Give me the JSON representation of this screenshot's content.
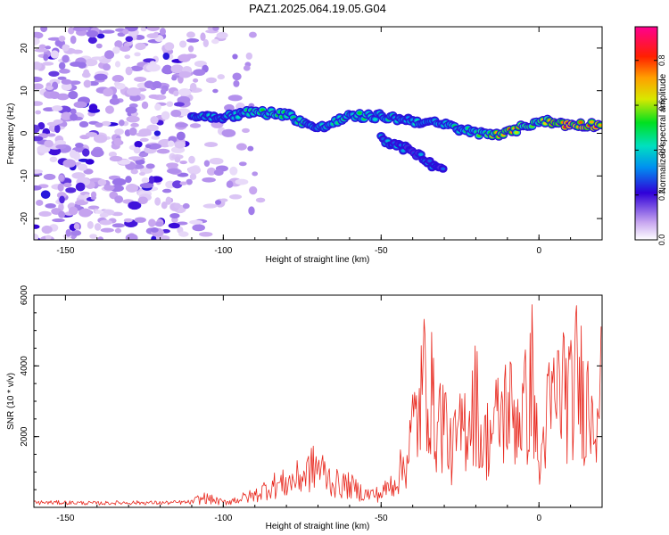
{
  "chart_data": [
    {
      "type": "heatmap",
      "title": "PAZ1.2025.064.19.05.G04",
      "xlabel": "Height of straight line (km)",
      "ylabel": "Frequency (Hz)",
      "xlim": [
        -160,
        20
      ],
      "ylim": [
        -25,
        25
      ],
      "x_ticks": [
        -150,
        -100,
        -50,
        0
      ],
      "y_ticks": [
        -20,
        -10,
        0,
        10,
        20
      ],
      "colorbar": {
        "label": "Normalized spectral amplitude",
        "range": [
          0,
          0.95
        ],
        "ticks": [
          0,
          0.2,
          0.4,
          0.6,
          0.8
        ]
      },
      "noise_region": {
        "x": [
          -160,
          -88
        ],
        "y": [
          -25,
          25
        ]
      },
      "signal_ridge": {
        "x": [
          -110,
          -100,
          -90,
          -80,
          -70,
          -60,
          -50,
          -40,
          -30,
          -20,
          -10,
          0,
          10,
          20
        ],
        "frequency": [
          4,
          4,
          5,
          4.5,
          1,
          4,
          4,
          3,
          2,
          0,
          0,
          3,
          2,
          2
        ],
        "amplitude": [
          0.4,
          0.4,
          0.5,
          0.5,
          0.45,
          0.5,
          0.45,
          0.4,
          0.45,
          0.5,
          0.75,
          0.6,
          0.9,
          0.8
        ]
      },
      "secondary_branch": {
        "x": [
          -50,
          -45,
          -40,
          -35,
          -30
        ],
        "frequency": [
          -1,
          -3,
          -4,
          -7,
          -9
        ],
        "amplitude": [
          0.35,
          0.35,
          0.3,
          0.35,
          0.3
        ]
      }
    },
    {
      "type": "line",
      "title": "",
      "xlabel": "Height of straight line (km)",
      "ylabel": "SNR (10 * v/v)",
      "xlim": [
        -160,
        20
      ],
      "ylim": [
        0,
        6000
      ],
      "x_ticks": [
        -150,
        -100,
        -50,
        0
      ],
      "y_ticks": [
        2000,
        4000,
        6000
      ],
      "series": [
        {
          "color": "#e8281e",
          "x": [
            -160,
            -150,
            -140,
            -130,
            -120,
            -110,
            -106,
            -100,
            -95,
            -90,
            -85,
            -80,
            -75,
            -72,
            -70,
            -65,
            -60,
            -55,
            -50,
            -45,
            -42,
            -40,
            -38,
            -36,
            -35,
            -33,
            -30,
            -28,
            -25,
            -22,
            -20,
            -18,
            -15,
            -12,
            -10,
            -8,
            -5,
            -3,
            -2,
            0,
            2,
            5,
            8,
            10,
            12,
            15,
            18,
            20
          ],
          "values": [
            150,
            150,
            130,
            150,
            140,
            160,
            400,
            200,
            350,
            500,
            900,
            1000,
            1300,
            1600,
            1700,
            1000,
            900,
            550,
            550,
            1200,
            2000,
            3300,
            4000,
            5500,
            5700,
            3500,
            3800,
            2300,
            3000,
            4000,
            4600,
            2500,
            3200,
            3800,
            4300,
            3800,
            4000,
            4500,
            5800,
            1200,
            3500,
            4500,
            5200,
            4300,
            5500,
            4400,
            4700,
            5000
          ]
        }
      ]
    }
  ]
}
